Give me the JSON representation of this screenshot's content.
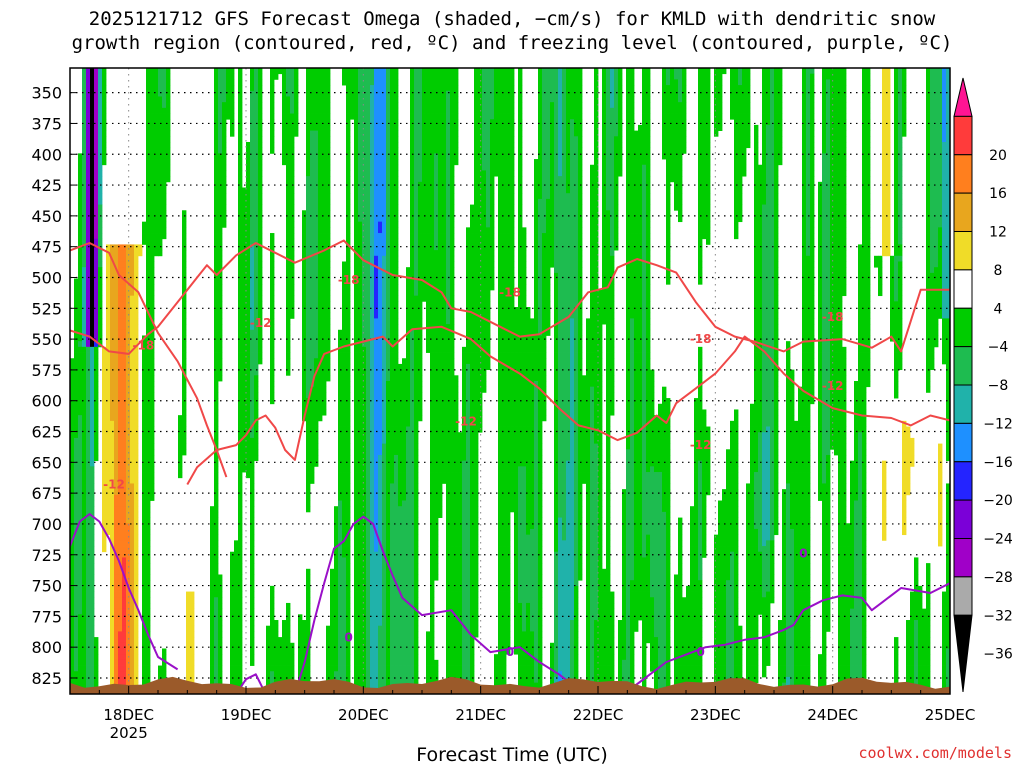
{
  "title_line1": "2025121712 GFS Forecast Omega (shaded, −cm/s) for KMLD with dendritic snow",
  "title_line2": "growth region (contoured, red, ºC) and freezing level (contoured, purple, ºC)",
  "credit": "coolwx.com/models",
  "chart_data": {
    "type": "heatmap",
    "xlabel": "Forecast Time (UTC)",
    "ylabel": "",
    "x_ticks": [
      "18DEC",
      "19DEC",
      "20DEC",
      "21DEC",
      "22DEC",
      "23DEC",
      "24DEC",
      "25DEC"
    ],
    "x_year_label": "2025",
    "x_range": [
      "2025-12-17 12Z",
      "2025-12-25 00Z"
    ],
    "y_ticks": [
      350,
      375,
      400,
      425,
      450,
      475,
      500,
      525,
      550,
      575,
      600,
      625,
      650,
      675,
      700,
      725,
      750,
      775,
      800,
      825
    ],
    "y_range": [
      330,
      838
    ],
    "y_inverted": true,
    "grid": true,
    "colorbar": {
      "tick_labels": [
        "20",
        "16",
        "12",
        "8",
        "4",
        "−4",
        "−8",
        "−12",
        "−16",
        "−20",
        "−24",
        "−28",
        "−32",
        "−36"
      ],
      "bins": [
        {
          "lo": 20,
          "hi": 24,
          "color": "#ff1493"
        },
        {
          "lo": 16,
          "hi": 20,
          "color": "#ff3b3b"
        },
        {
          "lo": 12,
          "hi": 16,
          "color": "#ff7f1e"
        },
        {
          "lo": 8,
          "hi": 12,
          "color": "#e8a61e"
        },
        {
          "lo": 4,
          "hi": 8,
          "color": "#f0dc28"
        },
        {
          "lo": -4,
          "hi": 4,
          "color": "#ffffff"
        },
        {
          "lo": -8,
          "hi": -4,
          "color": "#00cc00"
        },
        {
          "lo": -12,
          "hi": -8,
          "color": "#1ebc50"
        },
        {
          "lo": -16,
          "hi": -12,
          "color": "#20b2aa"
        },
        {
          "lo": -20,
          "hi": -16,
          "color": "#1e90ff"
        },
        {
          "lo": -24,
          "hi": -20,
          "color": "#2424ff"
        },
        {
          "lo": -28,
          "hi": -24,
          "color": "#7b00d8"
        },
        {
          "lo": -32,
          "hi": -28,
          "color": "#a000c8"
        },
        {
          "lo": -36,
          "hi": -32,
          "color": "#aaaaaa"
        },
        {
          "lo": -40,
          "hi": -36,
          "color": "#000000"
        }
      ]
    },
    "contour_labels": [
      {
        "text": "-18",
        "x": "2025-12-18 03Z",
        "y": 555
      },
      {
        "text": "-12",
        "x": "2025-12-19 03Z",
        "y": 537
      },
      {
        "text": "-18",
        "x": "2025-12-19 21Z",
        "y": 502
      },
      {
        "text": "-18",
        "x": "2025-12-21 06Z",
        "y": 512
      },
      {
        "text": "-12",
        "x": "2025-12-20 21Z",
        "y": 617
      },
      {
        "text": "-18",
        "x": "2025-12-22 21Z",
        "y": 550
      },
      {
        "text": "-12",
        "x": "2025-12-22 21Z",
        "y": 636
      },
      {
        "text": "-18",
        "x": "2025-12-24 00Z",
        "y": 532
      },
      {
        "text": "-12",
        "x": "2025-12-24 00Z",
        "y": 588
      },
      {
        "text": "-12",
        "x": "2025-12-17 21Z",
        "y": 668
      },
      {
        "text": "0",
        "x": "2025-12-19 21Z",
        "y": 792
      },
      {
        "text": "0",
        "x": "2025-12-21 06Z",
        "y": 804
      },
      {
        "text": "0",
        "x": "2025-12-22 21Z",
        "y": 804
      },
      {
        "text": "0",
        "x": "2025-12-23 18Z",
        "y": 724
      }
    ]
  }
}
